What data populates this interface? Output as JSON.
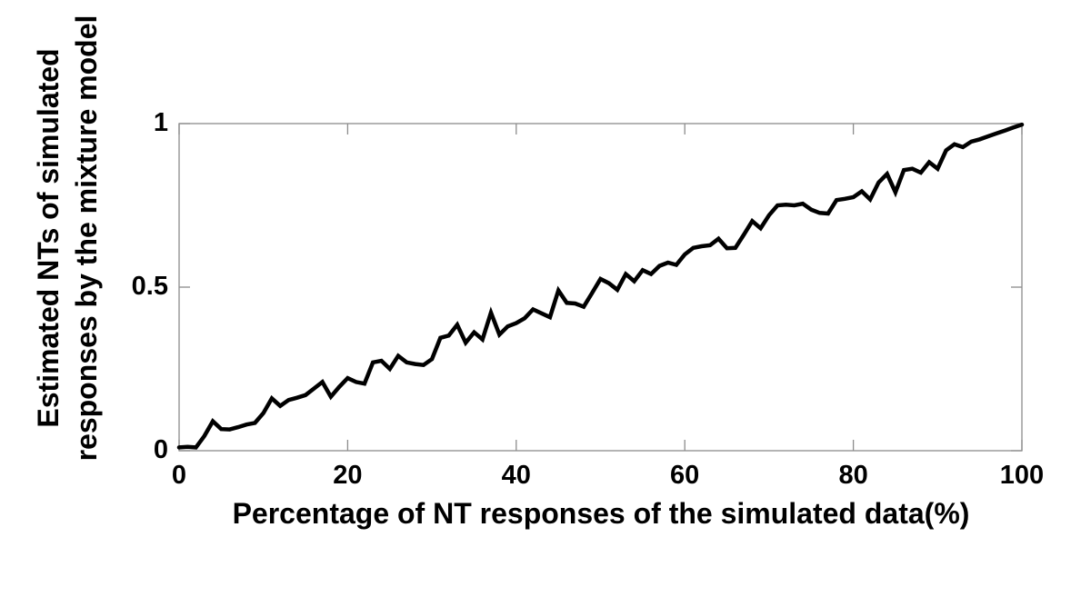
{
  "figure": {
    "background": "#ffffff"
  },
  "chart_data": {
    "type": "line",
    "title": "",
    "xlabel": "Percentage of NT responses of the simulated data(%)",
    "ylabel": "Estimated NTs of simulated responses by the mixture model",
    "ylabel_lines": [
      "Estimated NTs of simulated",
      "responses by the mixture model"
    ],
    "xlim": [
      0,
      100
    ],
    "ylim": [
      0,
      1
    ],
    "xticks": {
      "values": [
        0,
        20,
        40,
        60,
        80,
        100
      ],
      "labels": [
        "0",
        "20",
        "40",
        "60",
        "80",
        "100"
      ]
    },
    "yticks": {
      "values": [
        0,
        0.5,
        1
      ],
      "labels": [
        "0",
        "0.5",
        "1"
      ]
    },
    "grid": false,
    "box": true,
    "legend": null,
    "tick_direction": "in",
    "colors": {
      "line": "#000000",
      "axis": "#8c8c8c",
      "text": "#000000"
    },
    "series": [
      {
        "name": "estimated-NTs-vs-true-percentage",
        "x": [
          0,
          1,
          2,
          3,
          4,
          5,
          6,
          7,
          8,
          9,
          10,
          11,
          12,
          13,
          14,
          15,
          16,
          17,
          18,
          19,
          20,
          21,
          22,
          23,
          24,
          25,
          26,
          27,
          28,
          29,
          30,
          31,
          32,
          33,
          34,
          35,
          36,
          37,
          38,
          39,
          40,
          41,
          42,
          43,
          44,
          45,
          46,
          47,
          48,
          49,
          50,
          51,
          52,
          53,
          54,
          55,
          56,
          57,
          58,
          59,
          60,
          61,
          62,
          63,
          64,
          65,
          66,
          67,
          68,
          69,
          70,
          71,
          72,
          73,
          74,
          75,
          76,
          77,
          78,
          79,
          80,
          81,
          82,
          83,
          84,
          85,
          86,
          87,
          88,
          89,
          90,
          91,
          92,
          93,
          94,
          95,
          96,
          97,
          98,
          99,
          100
        ],
        "y": [
          0.01,
          0.012,
          0.01,
          0.045,
          0.09,
          0.066,
          0.065,
          0.072,
          0.08,
          0.085,
          0.115,
          0.16,
          0.137,
          0.155,
          0.162,
          0.17,
          0.19,
          0.21,
          0.165,
          0.195,
          0.222,
          0.21,
          0.205,
          0.27,
          0.275,
          0.25,
          0.29,
          0.27,
          0.265,
          0.262,
          0.28,
          0.345,
          0.352,
          0.385,
          0.33,
          0.362,
          0.34,
          0.422,
          0.355,
          0.38,
          0.39,
          0.405,
          0.432,
          0.42,
          0.408,
          0.49,
          0.452,
          0.45,
          0.44,
          0.482,
          0.525,
          0.512,
          0.492,
          0.54,
          0.518,
          0.552,
          0.54,
          0.565,
          0.575,
          0.568,
          0.6,
          0.62,
          0.625,
          0.628,
          0.648,
          0.619,
          0.62,
          0.66,
          0.702,
          0.68,
          0.72,
          0.75,
          0.752,
          0.75,
          0.755,
          0.737,
          0.727,
          0.725,
          0.766,
          0.77,
          0.775,
          0.793,
          0.768,
          0.82,
          0.846,
          0.79,
          0.858,
          0.862,
          0.85,
          0.882,
          0.862,
          0.918,
          0.937,
          0.928,
          0.945,
          0.952,
          0.961,
          0.97,
          0.979,
          0.988,
          0.997
        ]
      }
    ]
  }
}
